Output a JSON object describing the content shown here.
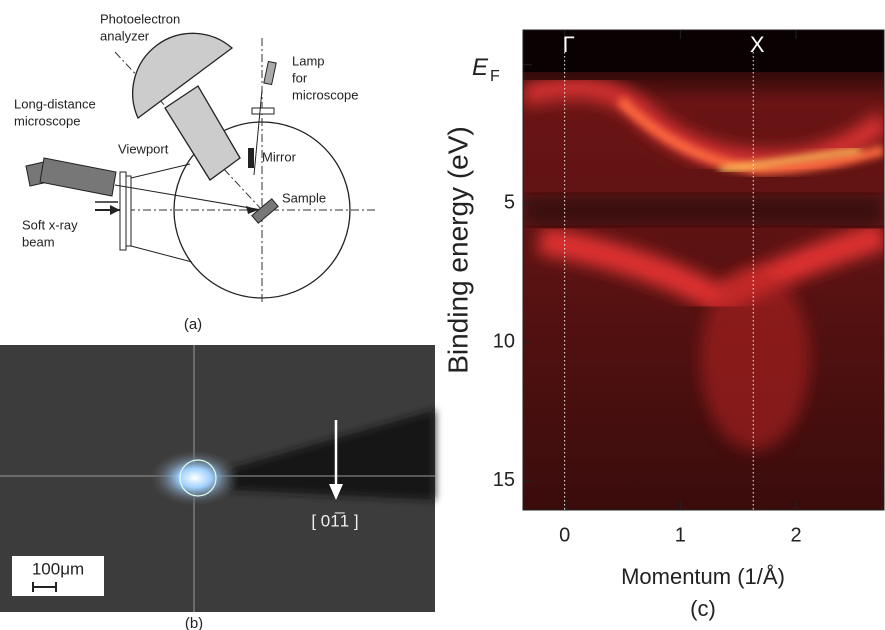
{
  "panel_a": {
    "caption": "(a)",
    "analyzer": [
      "Photoelectron",
      "analyzer"
    ],
    "lamp": [
      "Lamp",
      "for",
      "microscope"
    ],
    "microscope": [
      "Long-distance",
      "microscope"
    ],
    "viewport": "Viewport",
    "mirror": "Mirror",
    "sample": "Sample",
    "beam": [
      "Soft x-ray",
      "beam"
    ]
  },
  "panel_b": {
    "caption": "(b)",
    "scale_bar": "100μm",
    "direction": "[ 01̅1 ]"
  },
  "panel_c": {
    "caption": "(c)",
    "x_label": "Momentum (1/Å)",
    "y_label": "Binding energy (eV)",
    "xlim": [
      -0.36,
      2.76
    ],
    "ylim": [
      -1.25,
      16.05
    ],
    "xticks": [
      0,
      1,
      2
    ],
    "yticks": [
      5,
      10,
      15
    ],
    "fermi_tick": {
      "value": 0,
      "label": "E",
      "subscript": "F"
    },
    "high_symmetry": [
      {
        "label": "Γ",
        "value": 0
      },
      {
        "label": "X",
        "value": 1.63
      }
    ]
  }
}
